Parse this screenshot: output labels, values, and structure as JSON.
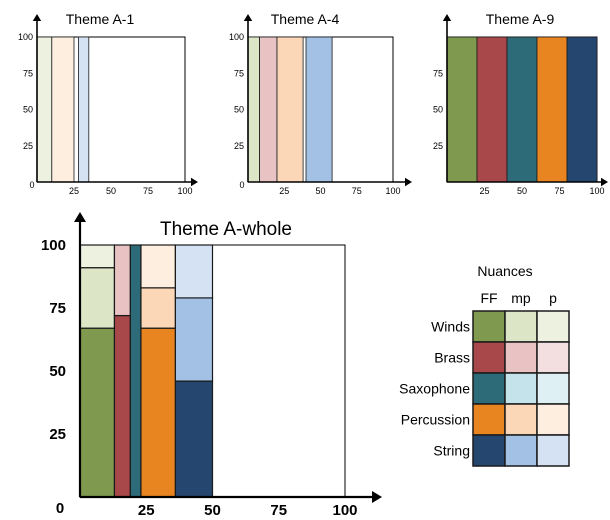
{
  "chart_data": [
    {
      "type": "mosaic",
      "title": "Theme A-1",
      "x_ticks": [
        "0",
        "25",
        "50",
        "75",
        "100"
      ],
      "y_ticks": [
        "100",
        "75",
        "50",
        "25"
      ],
      "xlim": [
        0,
        100
      ],
      "ylim": [
        0,
        100
      ],
      "bars": [
        {
          "instrument": "Winds",
          "x0": 0,
          "x1": 10,
          "segments": [
            {
              "nuance": "p",
              "from": 0,
              "to": 100
            }
          ]
        },
        {
          "instrument": "Percussion",
          "x0": 10,
          "x1": 25,
          "segments": [
            {
              "nuance": "p",
              "from": 0,
              "to": 100
            }
          ]
        },
        {
          "instrument": "String",
          "x0": 28,
          "x1": 35,
          "segments": [
            {
              "nuance": "p",
              "from": 0,
              "to": 100
            }
          ]
        }
      ]
    },
    {
      "type": "mosaic",
      "title": "Theme A-4",
      "x_ticks": [
        "0",
        "25",
        "50",
        "75",
        "100"
      ],
      "y_ticks": [
        "100",
        "75",
        "50",
        "25"
      ],
      "xlim": [
        0,
        100
      ],
      "ylim": [
        0,
        100
      ],
      "bars": [
        {
          "instrument": "Winds",
          "x0": 0,
          "x1": 8,
          "segments": [
            {
              "nuance": "mp",
              "from": 0,
              "to": 100
            }
          ]
        },
        {
          "instrument": "Brass",
          "x0": 8,
          "x1": 20,
          "segments": [
            {
              "nuance": "mp",
              "from": 0,
              "to": 100
            }
          ]
        },
        {
          "instrument": "Percussion",
          "x0": 20,
          "x1": 38,
          "segments": [
            {
              "nuance": "mp",
              "from": 0,
              "to": 100
            }
          ]
        },
        {
          "instrument": "String",
          "x0": 40,
          "x1": 58,
          "segments": [
            {
              "nuance": "mp",
              "from": 0,
              "to": 100
            }
          ]
        }
      ]
    },
    {
      "type": "mosaic",
      "title": "Theme A-9",
      "x_ticks": [
        "25",
        "50",
        "75",
        "100"
      ],
      "y_ticks": [
        "75",
        "50",
        "25"
      ],
      "xlim": [
        0,
        100
      ],
      "ylim": [
        0,
        100
      ],
      "bars": [
        {
          "instrument": "Winds",
          "x0": 0,
          "x1": 20,
          "segments": [
            {
              "nuance": "FF",
              "from": 0,
              "to": 100
            }
          ]
        },
        {
          "instrument": "Brass",
          "x0": 20,
          "x1": 40,
          "segments": [
            {
              "nuance": "FF",
              "from": 0,
              "to": 100
            }
          ]
        },
        {
          "instrument": "Saxophone",
          "x0": 40,
          "x1": 60,
          "segments": [
            {
              "nuance": "FF",
              "from": 0,
              "to": 100
            }
          ]
        },
        {
          "instrument": "Percussion",
          "x0": 60,
          "x1": 80,
          "segments": [
            {
              "nuance": "FF",
              "from": 0,
              "to": 100
            }
          ]
        },
        {
          "instrument": "String",
          "x0": 80,
          "x1": 100,
          "segments": [
            {
              "nuance": "FF",
              "from": 0,
              "to": 100
            }
          ]
        }
      ]
    },
    {
      "type": "mosaic",
      "title": "Theme A-whole",
      "x_ticks": [
        "0",
        "25",
        "50",
        "75",
        "100"
      ],
      "y_ticks": [
        "100",
        "75",
        "50",
        "25"
      ],
      "xlim": [
        0,
        100
      ],
      "ylim": [
        0,
        100
      ],
      "bars": [
        {
          "instrument": "Winds",
          "x0": 0,
          "x1": 13,
          "segments": [
            {
              "nuance": "FF",
              "from": 0,
              "to": 67
            },
            {
              "nuance": "mp",
              "from": 67,
              "to": 91
            },
            {
              "nuance": "p",
              "from": 91,
              "to": 100
            }
          ]
        },
        {
          "instrument": "Brass",
          "x0": 13,
          "x1": 19,
          "segments": [
            {
              "nuance": "FF",
              "from": 0,
              "to": 72
            },
            {
              "nuance": "mp",
              "from": 72,
              "to": 100
            }
          ]
        },
        {
          "instrument": "Saxophone",
          "x0": 19,
          "x1": 23,
          "segments": [
            {
              "nuance": "FF",
              "from": 0,
              "to": 100
            }
          ]
        },
        {
          "instrument": "Percussion",
          "x0": 23,
          "x1": 36,
          "segments": [
            {
              "nuance": "FF",
              "from": 0,
              "to": 67
            },
            {
              "nuance": "mp",
              "from": 67,
              "to": 83
            },
            {
              "nuance": "p",
              "from": 83,
              "to": 100
            }
          ]
        },
        {
          "instrument": "String",
          "x0": 36,
          "x1": 50,
          "segments": [
            {
              "nuance": "FF",
              "from": 0,
              "to": 46
            },
            {
              "nuance": "mp",
              "from": 46,
              "to": 79
            },
            {
              "nuance": "p",
              "from": 79,
              "to": 100
            }
          ]
        }
      ]
    }
  ],
  "legend": {
    "title": "Nuances",
    "nuances": [
      "FF",
      "mp",
      "p"
    ],
    "instruments": [
      "Winds",
      "Brass",
      "Saxophone",
      "Percussion",
      "String"
    ]
  },
  "colors": {
    "Winds": {
      "FF": "#7f9a4e",
      "mp": "#dce6c7",
      "p": "#ecf1e0"
    },
    "Brass": {
      "FF": "#a8484a",
      "mp": "#e9c3c3",
      "p": "#f3dfdf"
    },
    "Saxophone": {
      "FF": "#2e6b79",
      "mp": "#c4e3ea",
      "p": "#dff0f4"
    },
    "Percussion": {
      "FF": "#e98521",
      "mp": "#fbd7b7",
      "p": "#fdeee0"
    },
    "String": {
      "FF": "#24466f",
      "mp": "#a3c1e4",
      "p": "#d4e2f4"
    }
  }
}
